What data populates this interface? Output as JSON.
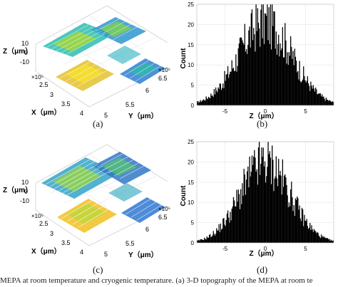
{
  "panels": [
    {
      "id": "a",
      "caption": "(a)",
      "type": "3d-surface",
      "z_label": "Z（μm）",
      "x_label": "X（μm）",
      "y_label": "Y（μm）",
      "x_exponent": "×10⁵",
      "y_exponent": "×10⁵",
      "z_ticks": [
        "10",
        "0",
        "-10"
      ],
      "x_ticks": [
        "2.5",
        "3",
        "3.5",
        "4"
      ],
      "y_ticks": [
        "5",
        "5.5",
        "6",
        "6.5"
      ]
    },
    {
      "id": "c",
      "caption": "(c)",
      "type": "3d-surface",
      "z_label": "Z（μm）",
      "x_label": "X（μm）",
      "y_label": "Y（μm）",
      "x_exponent": "×10⁵",
      "y_exponent": "×10⁵",
      "z_ticks": [
        "10",
        "0",
        "-10"
      ],
      "x_ticks": [
        "2.5",
        "3",
        "3.5",
        "4"
      ],
      "y_ticks": [
        "5",
        "5.5",
        "6",
        "6.5"
      ]
    }
  ],
  "chart_data": [
    {
      "id": "b",
      "caption": "(b)",
      "type": "bar",
      "title": "",
      "xlabel": "Z（μm）",
      "ylabel": "Count",
      "xlim": [
        -8.5,
        8.5
      ],
      "ylim": [
        0,
        25
      ],
      "x_ticks": [
        -5,
        0,
        5
      ],
      "y_ticks": [
        0,
        5,
        10,
        15,
        20,
        25
      ],
      "peak": 25,
      "spread": 3.3,
      "bin_count": 170,
      "color": "#000000",
      "grid": true
    },
    {
      "id": "d",
      "caption": "(d)",
      "type": "bar",
      "title": "",
      "xlabel": "Z（μm）",
      "ylabel": "Count",
      "xlim": [
        -8.5,
        8.5
      ],
      "ylim": [
        0,
        25
      ],
      "x_ticks": [
        -5,
        0,
        5
      ],
      "y_ticks": [
        0,
        5,
        10,
        15,
        20,
        25
      ],
      "peak": 24,
      "spread": 3.1,
      "bin_count": 170,
      "color": "#000000",
      "grid": true
    }
  ],
  "footer_caption": "MEPA at room temperature and cryogenic temperature. (a) 3-D topography of the MEPA at room te"
}
